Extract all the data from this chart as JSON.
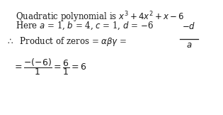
{
  "line1": "Quadratic polynomial is $x^3 + 4x^2 + x - 6$",
  "line2": "Here $a$ = 1, $b$ = 4, $c$ = 1, $d$ = −6",
  "line3_prefix": "$\\therefore$  Product of zeros = $\\alpha\\beta\\gamma$ =",
  "frac_num": "$-d$",
  "frac_den": "$a$",
  "line4": "$= \\dfrac{-(-6)}{1} = \\dfrac{6}{1} = 6$",
  "bg_color": "#ffffff",
  "text_color": "#1a1a1a"
}
